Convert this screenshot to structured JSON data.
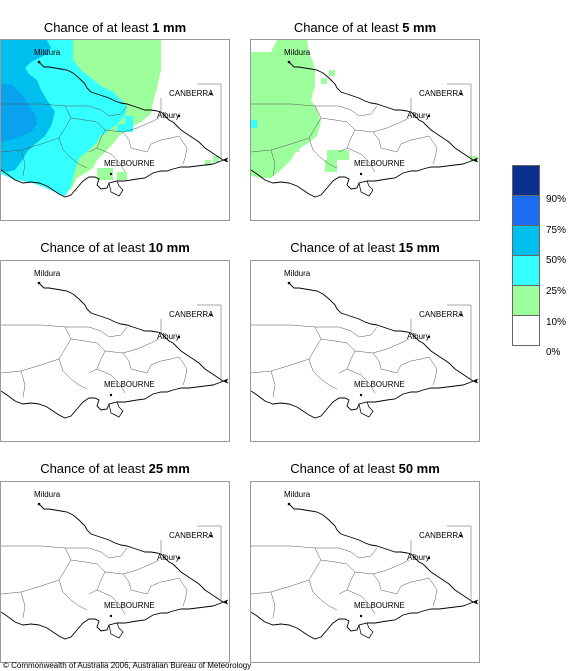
{
  "panels": [
    {
      "prefix": "Chance of at least ",
      "amount": "1 mm",
      "fill_level": "high"
    },
    {
      "prefix": "Chance of at least ",
      "amount": "5 mm",
      "fill_level": "low"
    },
    {
      "prefix": "Chance of at least ",
      "amount": "10 mm",
      "fill_level": "none"
    },
    {
      "prefix": "Chance of at least ",
      "amount": "15 mm",
      "fill_level": "none"
    },
    {
      "prefix": "Chance of at least ",
      "amount": "25 mm",
      "fill_level": "none"
    },
    {
      "prefix": "Chance of at least ",
      "amount": "50 mm",
      "fill_level": "none"
    }
  ],
  "places": {
    "mildura": "Mildura",
    "canberra": "CANBERRA",
    "albury": "Albury",
    "melbourne": "MELBOURNE"
  },
  "legend": {
    "labels": [
      "90%",
      "75%",
      "50%",
      "25%",
      "10%",
      "0%"
    ],
    "colors": [
      "#0a2f8c",
      "#1a6cf0",
      "#00bfef",
      "#33ffff",
      "#9cff9c",
      "#ffffff"
    ]
  },
  "copyright": "© Commonwealth of Australia 2006, Australian Bureau of Meteorology"
}
